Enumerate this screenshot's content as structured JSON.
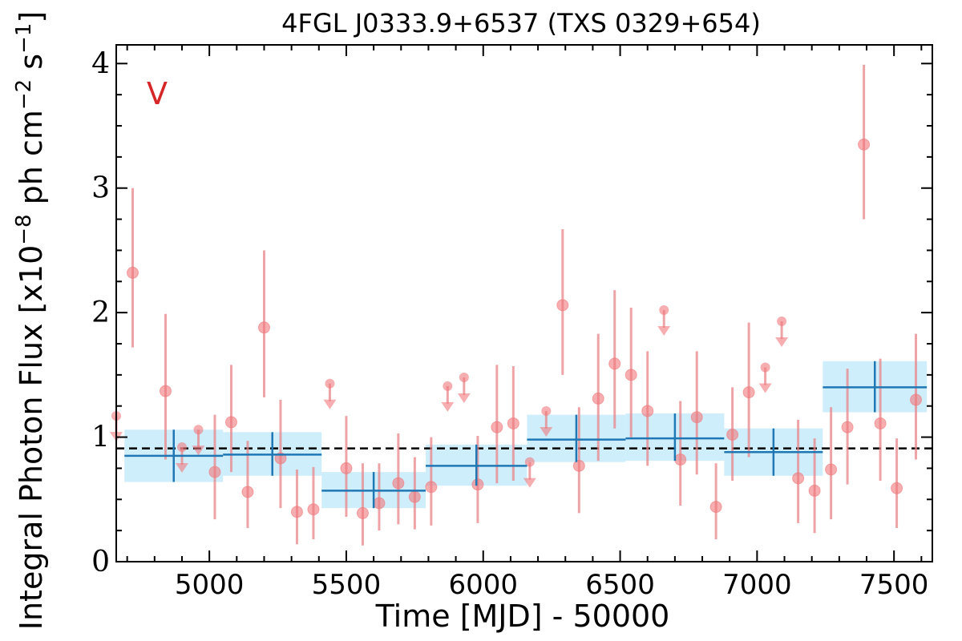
{
  "chart_data": {
    "type": "scatter",
    "title": "4FGL J0333.9+6537 (TXS 0329+654)",
    "xlabel": "Time [MJD] - 50000",
    "ylabel": {
      "prefix": "Integral Photon Flux [x10",
      "exp1": "−8",
      "mid": " ph cm",
      "exp2": "−2",
      "mid2": " s",
      "exp3": "−1",
      "suffix": "]"
    },
    "annotation": "V",
    "xlim": [
      4660,
      7640
    ],
    "ylim": [
      0,
      4.15
    ],
    "x_ticks": [
      5000,
      5500,
      6000,
      6500,
      7000,
      7500
    ],
    "x_tick_labels": [
      "5000",
      "5500",
      "6000",
      "6500",
      "7000",
      "7500"
    ],
    "y_ticks": [
      0,
      1,
      2,
      3,
      4
    ],
    "y_tick_labels": [
      "0",
      "1",
      "2",
      "3",
      "4"
    ],
    "mean_flux": 0.91,
    "colors": {
      "points": "#e8868a",
      "point_fill": "#f0787c",
      "bins": "#1f77b4",
      "bin_band": "#cfeefc",
      "mean_line": "#000000",
      "annotation": "#d62728"
    },
    "points": [
      {
        "x": 4720,
        "y": 2.32,
        "lo": 1.72,
        "hi": 3.0
      },
      {
        "x": 4840,
        "y": 1.37,
        "lo": 0.82,
        "hi": 1.99
      },
      {
        "x": 5020,
        "y": 0.72,
        "lo": 0.34,
        "hi": 1.18
      },
      {
        "x": 5080,
        "y": 1.12,
        "lo": 0.72,
        "hi": 1.58
      },
      {
        "x": 5140,
        "y": 0.56,
        "lo": 0.27,
        "hi": 0.97
      },
      {
        "x": 5200,
        "y": 1.88,
        "lo": 1.32,
        "hi": 2.5
      },
      {
        "x": 5260,
        "y": 0.83,
        "lo": 0.43,
        "hi": 1.3
      },
      {
        "x": 5320,
        "y": 0.4,
        "lo": 0.14,
        "hi": 0.74
      },
      {
        "x": 5380,
        "y": 0.42,
        "lo": 0.18,
        "hi": 0.76
      },
      {
        "x": 5500,
        "y": 0.75,
        "lo": 0.36,
        "hi": 1.17
      },
      {
        "x": 5560,
        "y": 0.39,
        "lo": 0.13,
        "hi": 0.79
      },
      {
        "x": 5620,
        "y": 0.47,
        "lo": 0.25,
        "hi": 0.79
      },
      {
        "x": 5690,
        "y": 0.63,
        "lo": 0.3,
        "hi": 1.03
      },
      {
        "x": 5750,
        "y": 0.52,
        "lo": 0.26,
        "hi": 0.84
      },
      {
        "x": 5810,
        "y": 0.6,
        "lo": 0.29,
        "hi": 1.0
      },
      {
        "x": 5980,
        "y": 0.62,
        "lo": 0.31,
        "hi": 1.01
      },
      {
        "x": 6050,
        "y": 1.08,
        "lo": 0.63,
        "hi": 1.58
      },
      {
        "x": 6110,
        "y": 1.11,
        "lo": 0.65,
        "hi": 1.57
      },
      {
        "x": 6290,
        "y": 2.06,
        "lo": 1.5,
        "hi": 2.67
      },
      {
        "x": 6350,
        "y": 0.77,
        "lo": 0.39,
        "hi": 1.24
      },
      {
        "x": 6420,
        "y": 1.31,
        "lo": 0.81,
        "hi": 1.83
      },
      {
        "x": 6480,
        "y": 1.59,
        "lo": 1.07,
        "hi": 2.18
      },
      {
        "x": 6540,
        "y": 1.5,
        "lo": 1.0,
        "hi": 2.04
      },
      {
        "x": 6600,
        "y": 1.21,
        "lo": 0.77,
        "hi": 1.69
      },
      {
        "x": 6720,
        "y": 0.82,
        "lo": 0.45,
        "hi": 1.29
      },
      {
        "x": 6780,
        "y": 1.16,
        "lo": 0.7,
        "hi": 1.69
      },
      {
        "x": 6850,
        "y": 0.44,
        "lo": 0.18,
        "hi": 0.79
      },
      {
        "x": 6910,
        "y": 1.02,
        "lo": 0.65,
        "hi": 1.4
      },
      {
        "x": 6970,
        "y": 1.36,
        "lo": 0.84,
        "hi": 1.92
      },
      {
        "x": 7150,
        "y": 0.67,
        "lo": 0.31,
        "hi": 1.14
      },
      {
        "x": 7210,
        "y": 0.57,
        "lo": 0.23,
        "hi": 0.99
      },
      {
        "x": 7270,
        "y": 0.74,
        "lo": 0.34,
        "hi": 1.24
      },
      {
        "x": 7330,
        "y": 1.08,
        "lo": 0.62,
        "hi": 1.55
      },
      {
        "x": 7390,
        "y": 3.35,
        "lo": 2.75,
        "hi": 3.99
      },
      {
        "x": 7450,
        "y": 1.11,
        "lo": 0.65,
        "hi": 1.63
      },
      {
        "x": 7510,
        "y": 0.59,
        "lo": 0.27,
        "hi": 0.99
      },
      {
        "x": 7580,
        "y": 1.3,
        "lo": 0.82,
        "hi": 1.83
      }
    ],
    "upper_limits": [
      {
        "x": 4660,
        "y": 1.17
      },
      {
        "x": 4900,
        "y": 0.92
      },
      {
        "x": 4960,
        "y": 1.06
      },
      {
        "x": 5440,
        "y": 1.43
      },
      {
        "x": 5870,
        "y": 1.41
      },
      {
        "x": 5930,
        "y": 1.48
      },
      {
        "x": 6170,
        "y": 0.8
      },
      {
        "x": 6230,
        "y": 1.21
      },
      {
        "x": 6660,
        "y": 2.02
      },
      {
        "x": 7030,
        "y": 1.56
      },
      {
        "x": 7090,
        "y": 1.93
      }
    ],
    "bins": [
      {
        "x0": 4690,
        "x1": 5050,
        "y": 0.85,
        "ylo": 0.64,
        "yhi": 1.06
      },
      {
        "x0": 5050,
        "x1": 5410,
        "y": 0.86,
        "ylo": 0.69,
        "yhi": 1.04
      },
      {
        "x0": 5410,
        "x1": 5790,
        "y": 0.57,
        "ylo": 0.43,
        "yhi": 0.72
      },
      {
        "x0": 5790,
        "x1": 6160,
        "y": 0.77,
        "ylo": 0.61,
        "yhi": 0.94
      },
      {
        "x0": 6160,
        "x1": 6520,
        "y": 0.98,
        "ylo": 0.8,
        "yhi": 1.18
      },
      {
        "x0": 6520,
        "x1": 6880,
        "y": 0.99,
        "ylo": 0.81,
        "yhi": 1.19
      },
      {
        "x0": 6880,
        "x1": 7240,
        "y": 0.88,
        "ylo": 0.69,
        "yhi": 1.07
      },
      {
        "x0": 7240,
        "x1": 7620,
        "y": 1.4,
        "ylo": 1.2,
        "yhi": 1.61
      }
    ]
  }
}
